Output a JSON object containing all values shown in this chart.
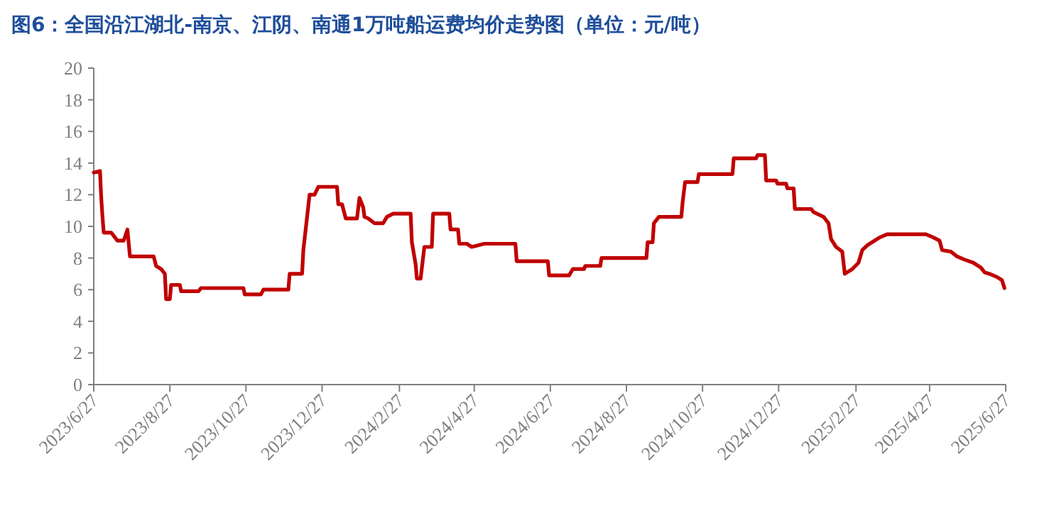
{
  "chart_data": {
    "type": "line",
    "title": "图6：全国沿江湖北-南京、江阴、南通1万吨船运费均价走势图（单位：元/吨）",
    "x": [
      "2023-06-27",
      "2023-07-02",
      "2023-07-03",
      "2023-07-04",
      "2023-07-05",
      "2023-07-11",
      "2023-07-16",
      "2023-07-21",
      "2023-07-24",
      "2023-07-26",
      "2023-08-14",
      "2023-08-16",
      "2023-08-20",
      "2023-08-23",
      "2023-08-24",
      "2023-08-27",
      "2023-08-28",
      "2023-09-04",
      "2023-09-05",
      "2023-09-19",
      "2023-09-21",
      "2023-10-25",
      "2023-10-26",
      "2023-11-08",
      "2023-11-10",
      "2023-11-30",
      "2023-12-01",
      "2023-12-11",
      "2023-12-12",
      "2023-12-14",
      "2023-12-17",
      "2023-12-21",
      "2023-12-24",
      "2024-01-08",
      "2024-01-09",
      "2024-01-12",
      "2024-01-15",
      "2024-01-24",
      "2024-01-26",
      "2024-01-29",
      "2024-01-30",
      "2024-02-02",
      "2024-02-07",
      "2024-02-14",
      "2024-02-17",
      "2024-02-22",
      "2024-03-07",
      "2024-03-08",
      "2024-03-11",
      "2024-03-12",
      "2024-03-15",
      "2024-03-18",
      "2024-03-24",
      "2024-03-25",
      "2024-04-07",
      "2024-04-08",
      "2024-04-14",
      "2024-04-15",
      "2024-04-21",
      "2024-04-25",
      "2024-05-05",
      "2024-05-30",
      "2024-05-31",
      "2024-06-25",
      "2024-06-26",
      "2024-07-12",
      "2024-07-15",
      "2024-07-24",
      "2024-07-25",
      "2024-08-06",
      "2024-08-07",
      "2024-09-12",
      "2024-09-13",
      "2024-09-17",
      "2024-09-18",
      "2024-09-22",
      "2024-10-10",
      "2024-10-11",
      "2024-10-13",
      "2024-10-23",
      "2024-10-24",
      "2024-11-20",
      "2024-11-21",
      "2024-12-09",
      "2024-12-10",
      "2024-12-16",
      "2024-12-17",
      "2024-12-25",
      "2024-12-26",
      "2025-01-02",
      "2025-01-03",
      "2025-01-08",
      "2025-01-09",
      "2025-01-22",
      "2025-01-24",
      "2025-02-01",
      "2025-02-05",
      "2025-02-07",
      "2025-02-11",
      "2025-02-16",
      "2025-02-18",
      "2025-02-24",
      "2025-03-01",
      "2025-03-04",
      "2025-03-08",
      "2025-03-12",
      "2025-03-18",
      "2025-03-24",
      "2025-04-24",
      "2025-04-30",
      "2025-05-05",
      "2025-05-07",
      "2025-05-14",
      "2025-05-19",
      "2025-05-25",
      "2025-06-01",
      "2025-06-07",
      "2025-06-10",
      "2025-06-14",
      "2025-06-20",
      "2025-06-24",
      "2025-06-26"
    ],
    "series": [
      {
        "color": "#c00000",
        "values": [
          13.4,
          13.5,
          11.8,
          10.6,
          9.6,
          9.6,
          9.1,
          9.1,
          9.8,
          8.1,
          8.1,
          7.5,
          7.3,
          7.0,
          5.4,
          5.4,
          6.3,
          6.3,
          5.9,
          5.9,
          6.1,
          6.1,
          5.7,
          5.7,
          6.0,
          6.0,
          7.0,
          7.0,
          8.5,
          9.9,
          12.0,
          12.0,
          12.5,
          12.5,
          11.4,
          11.4,
          10.5,
          10.5,
          11.8,
          11.2,
          10.6,
          10.5,
          10.2,
          10.2,
          10.6,
          10.8,
          10.8,
          9.0,
          7.6,
          6.7,
          6.7,
          8.7,
          8.7,
          10.8,
          10.8,
          9.8,
          9.8,
          8.9,
          8.9,
          8.7,
          8.9,
          8.9,
          7.8,
          7.8,
          6.9,
          6.9,
          7.3,
          7.3,
          7.5,
          7.5,
          8.0,
          8.0,
          9.0,
          9.0,
          10.2,
          10.6,
          10.6,
          11.5,
          12.8,
          12.8,
          13.3,
          13.3,
          14.3,
          14.3,
          14.5,
          14.5,
          12.9,
          12.9,
          12.7,
          12.7,
          12.4,
          12.4,
          11.1,
          11.1,
          10.9,
          10.6,
          10.2,
          9.2,
          8.7,
          8.4,
          7.0,
          7.3,
          7.7,
          8.5,
          8.8,
          9.0,
          9.3,
          9.5,
          9.5,
          9.3,
          9.1,
          8.5,
          8.4,
          8.1,
          7.9,
          7.7,
          7.4,
          7.1,
          7.0,
          6.8,
          6.6,
          6.1
        ]
      }
    ],
    "xlim": [
      "2023-06-27",
      "2025-06-27"
    ],
    "xticks": [
      {
        "value": "2023-06-27",
        "label": "2023/6/27"
      },
      {
        "value": "2023-08-27",
        "label": "2023/8/27"
      },
      {
        "value": "2023-10-27",
        "label": "2023/10/27"
      },
      {
        "value": "2023-12-27",
        "label": "2023/12/27"
      },
      {
        "value": "2024-02-27",
        "label": "2024/2/27"
      },
      {
        "value": "2024-04-27",
        "label": "2024/4/27"
      },
      {
        "value": "2024-06-27",
        "label": "2024/6/27"
      },
      {
        "value": "2024-08-27",
        "label": "2024/8/27"
      },
      {
        "value": "2024-10-27",
        "label": "2024/10/27"
      },
      {
        "value": "2024-12-27",
        "label": "2024/12/27"
      },
      {
        "value": "2025-02-27",
        "label": "2025/2/27"
      },
      {
        "value": "2025-04-27",
        "label": "2025/4/27"
      },
      {
        "value": "2025-06-27",
        "label": "2025/6/27"
      }
    ],
    "ylim": [
      0,
      20
    ],
    "yticks": [
      0,
      2,
      4,
      6,
      8,
      10,
      12,
      14,
      16,
      18,
      20
    ],
    "grid": false,
    "marker": "none",
    "line_style": "solid"
  }
}
